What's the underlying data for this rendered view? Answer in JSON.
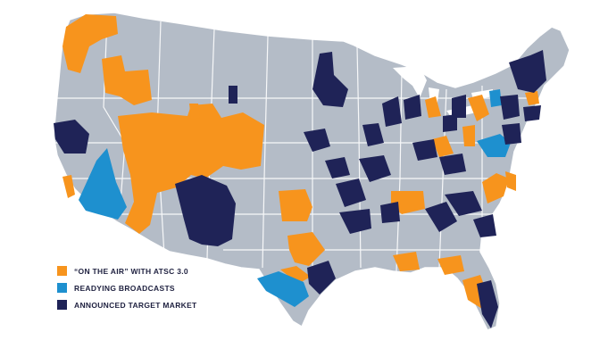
{
  "colors": {
    "background": "#ffffff",
    "land": "#b4bcc7",
    "borders": "#ffffff",
    "on_air": "#f7941d",
    "readying": "#1e90cf",
    "target": "#1f2357"
  },
  "legend": {
    "items": [
      {
        "label": "“ON THE AIR” WITH ATSC 3.0",
        "status": "on_air",
        "color": "#f7941d"
      },
      {
        "label": "READYING BROADCASTS",
        "status": "readying",
        "color": "#1e90cf"
      },
      {
        "label": "ANNOUNCED TARGET MARKET",
        "status": "target",
        "color": "#1f2357"
      }
    ]
  }
}
